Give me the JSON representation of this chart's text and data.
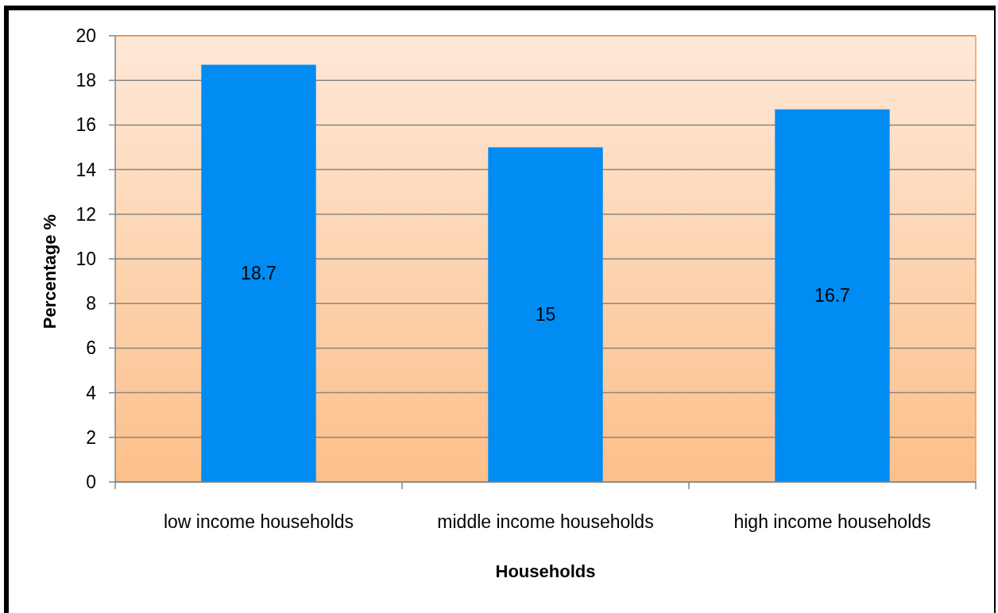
{
  "chart_data": {
    "type": "bar",
    "xlabel": "Households",
    "ylabel": "Percentage %",
    "categories": [
      "low income households",
      "middle income households",
      "high income households"
    ],
    "values": [
      18.7,
      15,
      16.7
    ],
    "color": "#008cf2",
    "ylim": [
      0,
      20
    ],
    "yticks": [
      0,
      2,
      4,
      6,
      8,
      10,
      12,
      14,
      16,
      18,
      20
    ],
    "grid": "y",
    "data_labels": true
  }
}
